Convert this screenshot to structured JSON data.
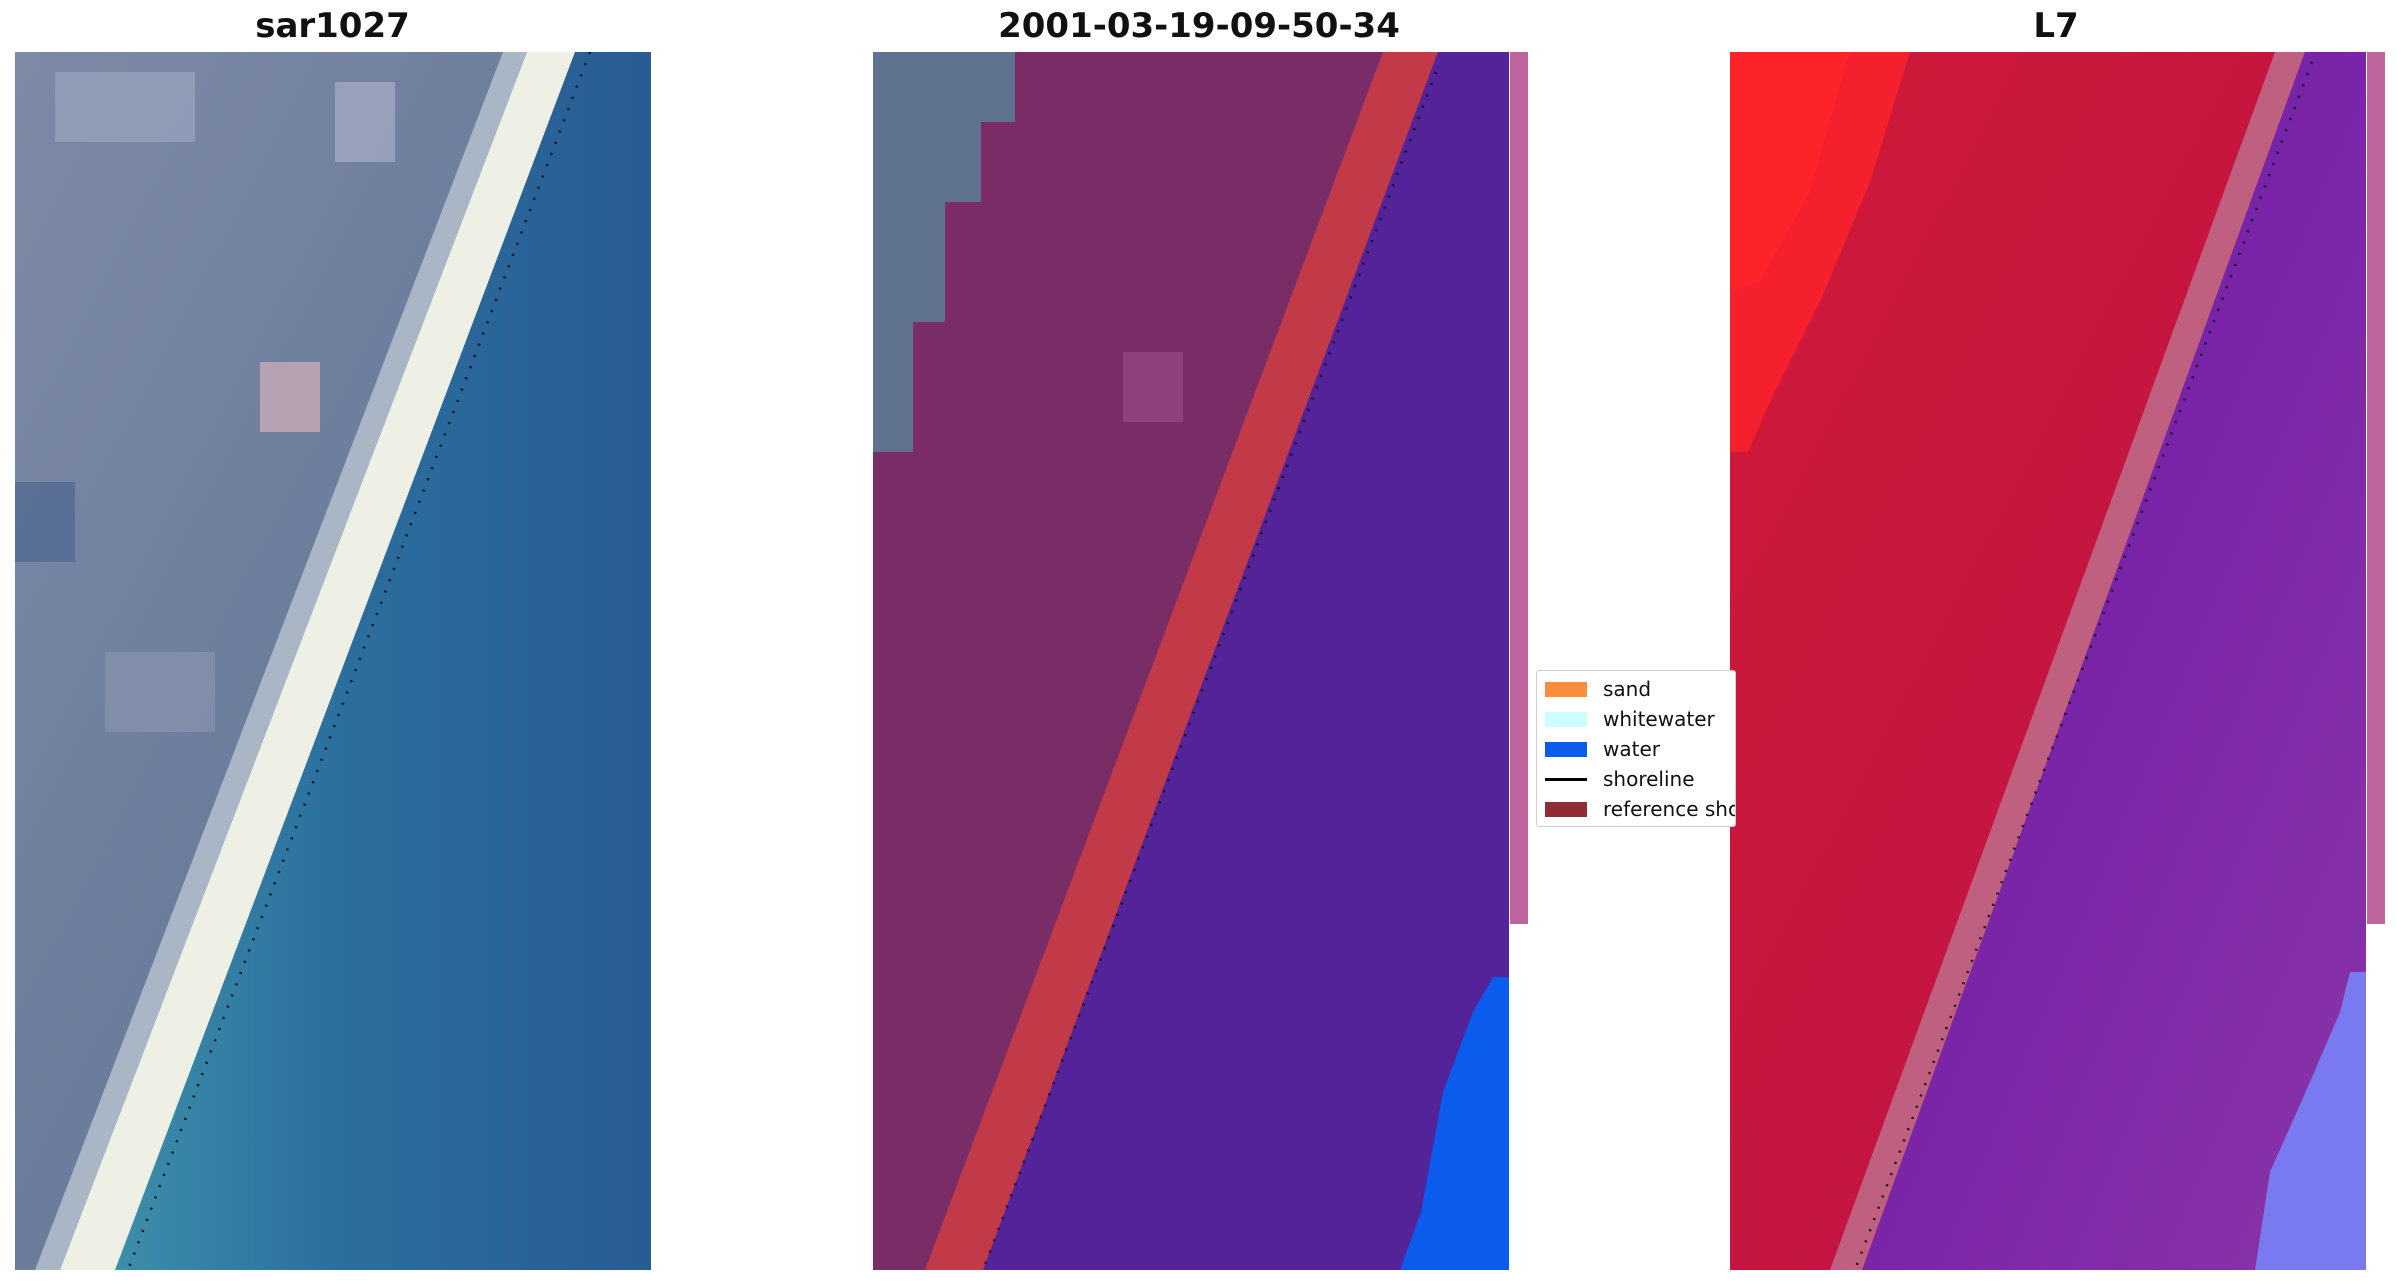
{
  "panels": [
    {
      "title": "sar1027"
    },
    {
      "title": "2001-03-19-09-50-34"
    },
    {
      "title": "L7"
    }
  ],
  "legend": {
    "items": [
      {
        "label": "sand",
        "color": "#fb8c3c",
        "kind": "patch"
      },
      {
        "label": "whitewater",
        "color": "#cdfdfd",
        "kind": "patch"
      },
      {
        "label": "water",
        "color": "#0b5bec",
        "kind": "patch"
      },
      {
        "label": "shoreline",
        "color": "#000000",
        "kind": "line"
      },
      {
        "label": "reference shoreline",
        "color": "#8e2d34",
        "kind": "patch"
      }
    ]
  },
  "colors": {
    "rgb_land": "#6b7d9a",
    "rgb_beach": "#eef0e6",
    "rgb_water": "#2a6a9c",
    "class_land": "#7a2c66",
    "class_sand": "#c23a48",
    "class_water": "#54239a",
    "class_water_overlay": "#0b5bec",
    "ndwi_red": "#c5173a",
    "ndwi_purple": "#6e1fa8"
  }
}
